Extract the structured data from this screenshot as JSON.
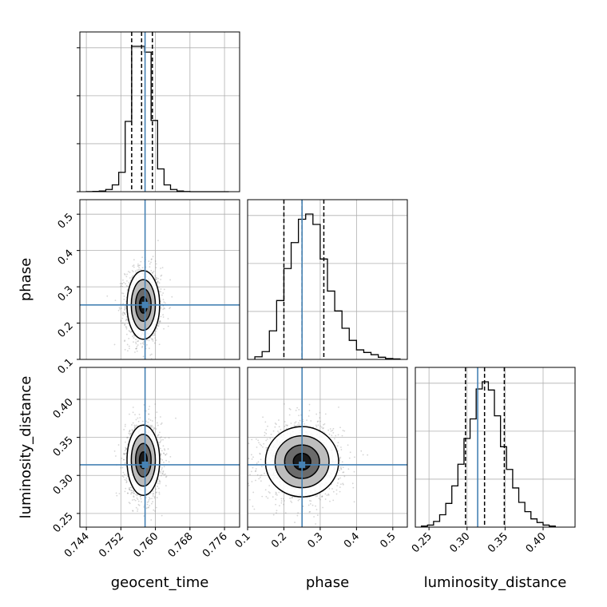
{
  "chart_data": {
    "type": "corner",
    "parameters": [
      "geocent_time",
      "phase",
      "luminosity_distance"
    ],
    "axis_labels": {
      "geocent_time": "geocent_time",
      "phase": "phase",
      "luminosity_distance": "luminosity_distance"
    },
    "ranges": {
      "geocent_time": [
        0.7425,
        0.7795
      ],
      "phase": [
        0.1,
        0.54
      ],
      "luminosity_distance": [
        0.232,
        0.442
      ]
    },
    "ticks": {
      "geocent_time": [
        "0.744",
        "0.752",
        "0.760",
        "0.768",
        "0.776"
      ],
      "phase": [
        "0.1",
        "0.2",
        "0.3",
        "0.4",
        "0.5"
      ],
      "luminosity_distance": [
        "0.25",
        "0.30",
        "0.35",
        "0.40"
      ]
    },
    "truths": {
      "geocent_time": 0.7576,
      "phase": 0.25,
      "luminosity_distance": 0.314
    },
    "quantiles": {
      "geocent_time": [
        0.7545,
        0.7568,
        0.7593
      ],
      "phase": [
        0.2,
        0.25,
        0.31
      ],
      "luminosity_distance": [
        0.298,
        0.323,
        0.349
      ]
    },
    "marginals": {
      "geocent_time": {
        "bins": [
          0.744,
          0.7455,
          0.747,
          0.7485,
          0.75,
          0.7515,
          0.753,
          0.7545,
          0.756,
          0.7575,
          0.759,
          0.7605,
          0.762,
          0.7635,
          0.765,
          0.7665,
          0.768,
          0.7695,
          0.771,
          0.7725,
          0.774,
          0.7755,
          0.777
        ],
        "counts": [
          2,
          5,
          15,
          45,
          140,
          400,
          1450,
          3000,
          3000,
          2880,
          1470,
          470,
          140,
          45,
          15,
          4,
          0,
          0,
          0,
          0,
          0,
          0
        ]
      },
      "phase": {
        "bins": [
          0.12,
          0.14,
          0.16,
          0.18,
          0.2,
          0.22,
          0.24,
          0.26,
          0.28,
          0.3,
          0.32,
          0.34,
          0.36,
          0.38,
          0.4,
          0.42,
          0.44,
          0.46,
          0.48,
          0.5,
          0.52
        ],
        "counts": [
          30,
          90,
          330,
          680,
          1050,
          1350,
          1620,
          1680,
          1560,
          1160,
          790,
          560,
          360,
          220,
          110,
          80,
          55,
          25,
          10,
          5
        ]
      },
      "luminosity_distance": {
        "bins": [
          0.24,
          0.248,
          0.256,
          0.264,
          0.272,
          0.28,
          0.288,
          0.296,
          0.304,
          0.312,
          0.32,
          0.328,
          0.336,
          0.344,
          0.352,
          0.36,
          0.368,
          0.376,
          0.384,
          0.392,
          0.4,
          0.408,
          0.416
        ],
        "counts": [
          10,
          20,
          55,
          120,
          230,
          400,
          610,
          860,
          1050,
          1340,
          1410,
          1330,
          1080,
          780,
          560,
          380,
          240,
          150,
          80,
          45,
          20,
          10
        ]
      }
    },
    "joint": {
      "phase_vs_geocent_time": {
        "center": [
          0.7572,
          0.25
        ],
        "spread": [
          0.0018,
          0.045
        ]
      },
      "luminosity_distance_vs_geocent_time": {
        "center": [
          0.7572,
          0.32
        ],
        "spread": [
          0.0018,
          0.022
        ]
      },
      "luminosity_distance_vs_phase": {
        "center": [
          0.25,
          0.318
        ],
        "spread": [
          0.048,
          0.022
        ]
      }
    },
    "colors": {
      "truth": "#4682b4",
      "hist": "#000000",
      "quantile": "#000000",
      "grid": "#b0b0b0",
      "points": "#888888"
    }
  }
}
